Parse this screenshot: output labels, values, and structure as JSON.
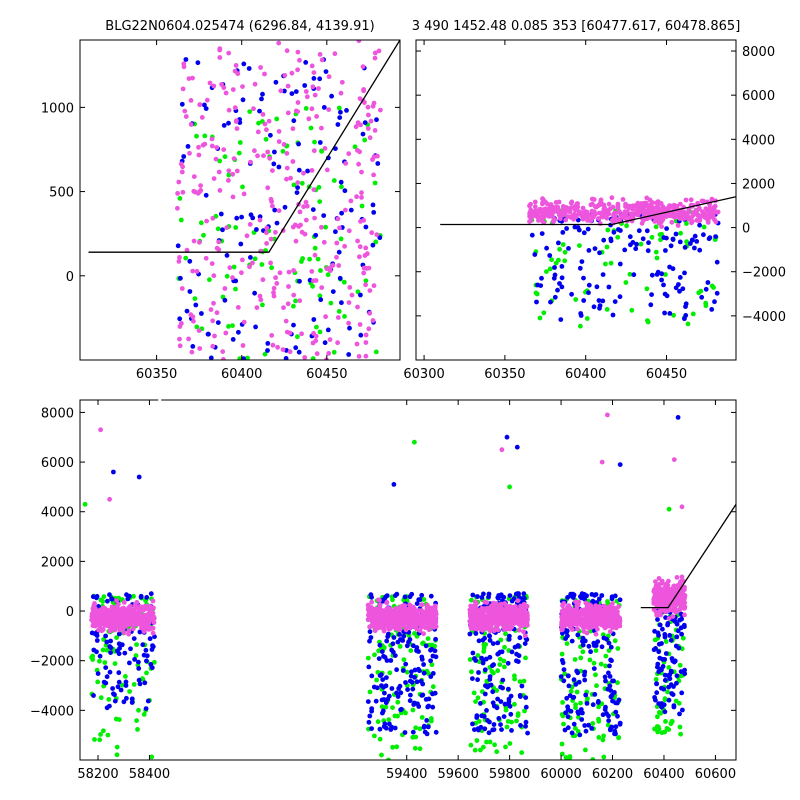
{
  "titles": {
    "left": "BLG22N0604.025474 (6296.84, 4139.91)",
    "right": "3 490 1452.48 0.085 353 [60477.617, 60478.865]"
  },
  "colors": {
    "blue": "#0000ee",
    "green": "#00ee00",
    "pink": "#ee55dd",
    "line": "#000000"
  },
  "chart_data": [
    {
      "id": "top-left",
      "type": "scatter",
      "xlim": [
        60305,
        60493
      ],
      "ylim": [
        -500,
        1400
      ],
      "xticks": [
        60350,
        60400,
        60450
      ],
      "yticks": [
        0,
        500,
        1000
      ],
      "ytick_side": "left",
      "fit_line": {
        "x": [
          60310,
          60416,
          60493
        ],
        "y": [
          140,
          140,
          1400
        ]
      },
      "clusters": [
        {
          "x": [
            60362,
            60482
          ],
          "spread": "wide",
          "pink_y": [
            -500,
            1400
          ],
          "green_y": [
            -500,
            1000
          ],
          "blue_y": [
            -500,
            1300
          ],
          "n_pink": 330,
          "n_green": 110,
          "n_blue": 150
        }
      ]
    },
    {
      "id": "top-right",
      "type": "scatter",
      "xlim": [
        60295,
        60493
      ],
      "ylim": [
        -6000,
        8500
      ],
      "xticks": [
        60300,
        60350,
        60400,
        60450
      ],
      "yticks": [
        -4000,
        -2000,
        0,
        2000,
        4000,
        6000,
        8000
      ],
      "ytick_side": "right",
      "fit_line": {
        "x": [
          60310,
          60416,
          60493
        ],
        "y": [
          140,
          140,
          1400
        ]
      },
      "clusters": [
        {
          "x": [
            60365,
            60482
          ],
          "spread": "band",
          "pink_y": [
            -300,
            1700
          ],
          "green_y": [
            -4500,
            800
          ],
          "blue_y": [
            -4200,
            600
          ],
          "n_pink": 420,
          "n_green": 90,
          "n_blue": 160
        }
      ]
    },
    {
      "id": "bottom",
      "type": "scatter",
      "xlim": [
        58130,
        60680
      ],
      "ylim": [
        -6000,
        8500
      ],
      "xticks": [
        58200,
        58400,
        59400,
        59600,
        59800,
        60000,
        60200,
        60400,
        60600
      ],
      "yticks": [
        -4000,
        -2000,
        0,
        2000,
        4000,
        6000,
        8000
      ],
      "ytick_side": "left",
      "break_at_x": 58440,
      "fit_line": {
        "x": [
          60310,
          60416,
          60680
        ],
        "y": [
          140,
          140,
          4300
        ]
      },
      "clusters": [
        {
          "x": [
            58175,
            58420
          ],
          "spread": "band",
          "pink_y": [
            -1200,
            700
          ],
          "green_y": [
            -6000,
            600
          ],
          "blue_y": [
            -4000,
            700
          ],
          "n_pink": 420,
          "n_green": 90,
          "n_blue": 110
        },
        {
          "x": [
            59250,
            59515
          ],
          "spread": "band",
          "pink_y": [
            -1200,
            700
          ],
          "green_y": [
            -6000,
            600
          ],
          "blue_y": [
            -5000,
            700
          ],
          "n_pink": 460,
          "n_green": 130,
          "n_blue": 190
        },
        {
          "x": [
            59645,
            59870
          ],
          "spread": "band",
          "pink_y": [
            -1200,
            700
          ],
          "green_y": [
            -6000,
            600
          ],
          "blue_y": [
            -5000,
            700
          ],
          "n_pink": 400,
          "n_green": 110,
          "n_blue": 170
        },
        {
          "x": [
            60000,
            60230
          ],
          "spread": "band",
          "pink_y": [
            -1200,
            700
          ],
          "green_y": [
            -6000,
            600
          ],
          "blue_y": [
            -5000,
            700
          ],
          "n_pink": 420,
          "n_green": 110,
          "n_blue": 170
        },
        {
          "x": [
            60360,
            60482
          ],
          "spread": "band",
          "pink_y": [
            -700,
            1800
          ],
          "green_y": [
            -5000,
            800
          ],
          "blue_y": [
            -4200,
            700
          ],
          "n_pink": 280,
          "n_green": 70,
          "n_blue": 120
        }
      ],
      "outliers": [
        {
          "x": 58210,
          "y": 7300,
          "c": "pink"
        },
        {
          "x": 58260,
          "y": 5600,
          "c": "blue"
        },
        {
          "x": 58360,
          "y": 5400,
          "c": "blue"
        },
        {
          "x": 58150,
          "y": 4300,
          "c": "green"
        },
        {
          "x": 58245,
          "y": 4500,
          "c": "pink"
        },
        {
          "x": 59430,
          "y": 6800,
          "c": "green"
        },
        {
          "x": 59350,
          "y": 5100,
          "c": "blue"
        },
        {
          "x": 59790,
          "y": 7000,
          "c": "blue"
        },
        {
          "x": 59830,
          "y": 6600,
          "c": "blue"
        },
        {
          "x": 59770,
          "y": 6500,
          "c": "pink"
        },
        {
          "x": 59800,
          "y": 5000,
          "c": "green"
        },
        {
          "x": 60180,
          "y": 7900,
          "c": "pink"
        },
        {
          "x": 60160,
          "y": 6000,
          "c": "pink"
        },
        {
          "x": 60230,
          "y": 5900,
          "c": "blue"
        },
        {
          "x": 60455,
          "y": 7800,
          "c": "blue"
        },
        {
          "x": 60440,
          "y": 6100,
          "c": "pink"
        },
        {
          "x": 60470,
          "y": 4200,
          "c": "pink"
        },
        {
          "x": 60420,
          "y": 4100,
          "c": "green"
        }
      ]
    }
  ]
}
